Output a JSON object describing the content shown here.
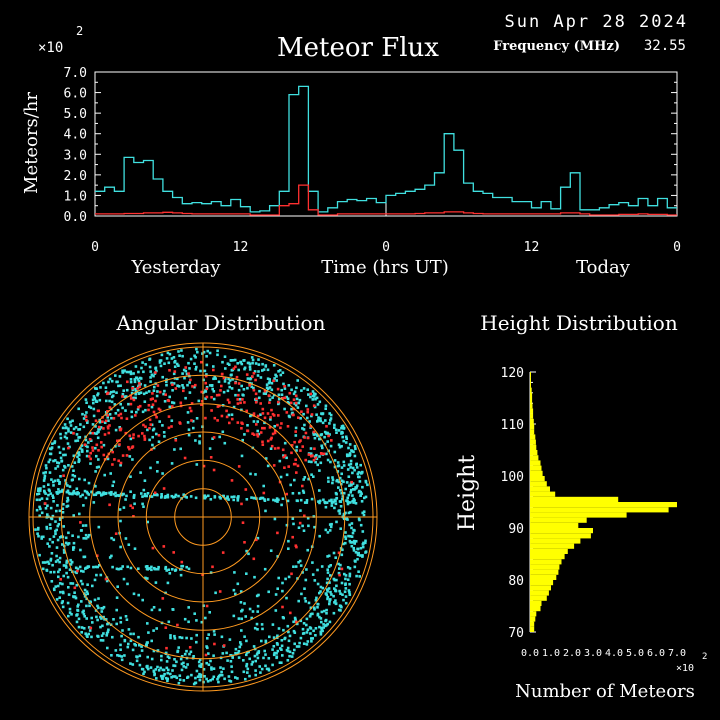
{
  "header": {
    "date": "Sun Apr 28 2024",
    "title": "Meteor Flux",
    "frequency_label": "Frequency (MHz)",
    "frequency_value": "32.55",
    "exponent_label": "×10",
    "exponent_power": "2"
  },
  "chart_data": [
    {
      "type": "line",
      "name": "flux",
      "ylabel": "Meteors/hr",
      "xlabel": "Time (hrs UT)",
      "day_labels": [
        "Yesterday",
        "Today"
      ],
      "y_ticks": [
        "0.0",
        "1.0",
        "2.0",
        "3.0",
        "4.0",
        "5.0",
        "6.0",
        "7.0"
      ],
      "x_ticks": [
        "0",
        "12",
        "0",
        "12",
        "0"
      ],
      "ylim": [
        0,
        7
      ],
      "xlim": [
        0,
        48
      ],
      "y_multiplier": 100,
      "series": [
        {
          "color": "#40e0e0",
          "values": [
            1.2,
            1.4,
            1.2,
            2.85,
            2.6,
            2.7,
            1.8,
            1.2,
            0.9,
            0.6,
            0.65,
            0.6,
            0.7,
            0.5,
            0.8,
            0.45,
            0.2,
            0.25,
            0.5,
            1.2,
            5.9,
            6.3,
            1.2,
            0.2,
            0.4,
            0.7,
            0.8,
            0.75,
            0.85,
            0.65,
            1.0,
            1.1,
            1.2,
            1.3,
            1.5,
            2.1,
            4.0,
            3.2,
            1.6,
            1.2,
            1.1,
            0.9,
            0.9,
            0.7,
            0.7,
            0.4,
            0.7,
            0.35,
            1.4,
            2.1,
            0.3,
            0.3,
            0.4,
            0.55,
            0.65,
            0.5,
            0.85,
            0.5,
            0.85,
            0.4
          ]
        },
        {
          "color": "#ff3030",
          "values": [
            0.1,
            0.1,
            0.1,
            0.12,
            0.12,
            0.15,
            0.15,
            0.18,
            0.15,
            0.12,
            0.1,
            0.1,
            0.1,
            0.1,
            0.1,
            0.1,
            0.05,
            0.05,
            0.05,
            0.5,
            0.6,
            1.5,
            0.3,
            0.05,
            0.05,
            0.1,
            0.1,
            0.1,
            0.1,
            0.1,
            0.1,
            0.1,
            0.1,
            0.12,
            0.15,
            0.15,
            0.2,
            0.2,
            0.15,
            0.12,
            0.1,
            0.1,
            0.1,
            0.1,
            0.1,
            0.1,
            0.1,
            0.1,
            0.15,
            0.15,
            0.1,
            0.05,
            0.05,
            0.05,
            0.08,
            0.08,
            0.1,
            0.08,
            0.08,
            0.05
          ]
        }
      ]
    },
    {
      "type": "scatter",
      "name": "angular",
      "title": "Angular Distribution",
      "rings": 6,
      "colors": [
        "#40e0e0",
        "#ff3030"
      ]
    },
    {
      "type": "bar",
      "name": "height",
      "title": "Height Distribution",
      "ylabel": "Height",
      "xlabel": "Number of Meteors",
      "y_ticks": [
        "70",
        "80",
        "90",
        "100",
        "110",
        "120"
      ],
      "x_ticks": [
        "0.0",
        "1.0",
        "2.0",
        "3.0",
        "4.0",
        "5.0",
        "6.0",
        "7.0"
      ],
      "x_exponent_label": "×10",
      "x_exponent_power": "2",
      "xlim": [
        0,
        7
      ],
      "ylim": [
        70,
        120
      ],
      "bar_color": "#ffff00",
      "heights": [
        70.5,
        71.5,
        72.5,
        73.5,
        74.5,
        75.5,
        76.5,
        77.5,
        78.5,
        79.5,
        80.5,
        81.5,
        82.5,
        83.5,
        84.5,
        85.5,
        86.5,
        87.5,
        88.5,
        89.5,
        90.5,
        91.5,
        92.5,
        93.5,
        94.5,
        95.5,
        96.5,
        97.5,
        98.5,
        99.5,
        100.5,
        101.5,
        102.5,
        103.5,
        104.5,
        105.5,
        106.5,
        107.5,
        108.5,
        109.5,
        110.5,
        111.5,
        112.5,
        113.5,
        114.5,
        115.5,
        116.5,
        117.5,
        118.5,
        119.5
      ],
      "counts": [
        0.2,
        0.2,
        0.25,
        0.3,
        0.5,
        0.55,
        0.8,
        0.9,
        1.0,
        1.1,
        1.25,
        1.35,
        1.4,
        1.5,
        1.65,
        1.8,
        2.1,
        2.4,
        2.9,
        3.0,
        2.3,
        2.7,
        4.6,
        6.6,
        7.0,
        4.2,
        1.2,
        0.95,
        0.8,
        0.7,
        0.6,
        0.55,
        0.5,
        0.4,
        0.35,
        0.3,
        0.28,
        0.25,
        0.2,
        0.2,
        0.18,
        0.15,
        0.15,
        0.12,
        0.1,
        0.1,
        0.08,
        0.05,
        0.05,
        0.05
      ]
    }
  ]
}
